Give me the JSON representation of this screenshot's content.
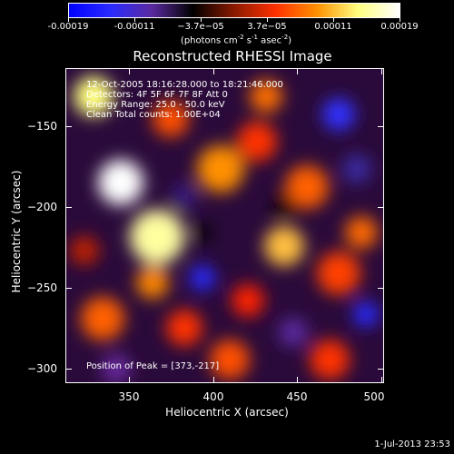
{
  "colorbar": {
    "tick_labels": [
      "-0.00019",
      "-0.00011",
      "−3.7e−05",
      "3.7e−05",
      "0.00011",
      "0.00019"
    ],
    "units_text": "(photons cm",
    "units_sup1": "-2",
    "units_mid": " s",
    "units_sup2": "-1",
    "units_end": " asec",
    "units_sup3": "-2",
    "units_close": ")"
  },
  "title": "Reconstructed RHESSI Image",
  "info_lines": [
    "12-Oct-2005 18:16:28.000 to 18:21:46.000",
    "Detectors: 4F 5F 6F 7F 8F  Att 0",
    "Energy Range: 25.0 - 50.0 keV",
    "Clean    Total counts: 1.00E+04"
  ],
  "peak_label": "Position of Peak = [373,-217]",
  "axes": {
    "x_title": "Heliocentric X (arcsec)",
    "y_title": "Heliocentric Y (arcsec)",
    "x_ticks": [
      "350",
      "400",
      "450",
      "500"
    ],
    "y_ticks": [
      "−150",
      "−200",
      "−250",
      "−300"
    ]
  },
  "timestamp": "1-Jul-2013 23:53",
  "colors": {
    "colormap": [
      "#0000ff",
      "#2a2aff",
      "#5a2aa0",
      "#000000",
      "#8a1a00",
      "#ff3000",
      "#ff9000",
      "#ffff80",
      "#ffffff"
    ]
  }
}
